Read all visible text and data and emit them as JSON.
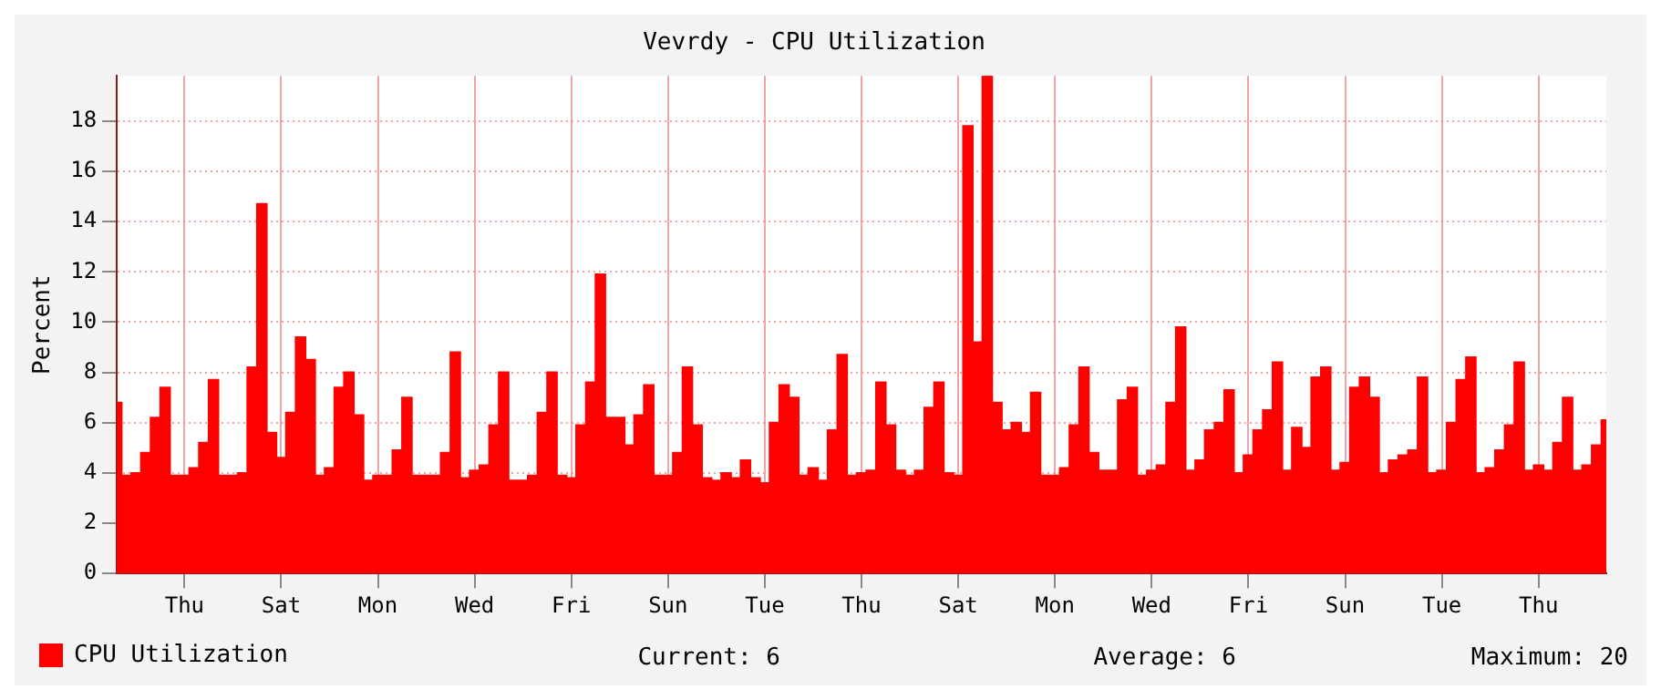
{
  "chart_data": {
    "type": "area",
    "title": "Vevrdy - CPU Utilization",
    "ylabel": "Percent",
    "categories": [
      null,
      null,
      null,
      null,
      null,
      null,
      null,
      "Thu",
      null,
      null,
      null,
      null,
      null,
      null,
      null,
      null,
      null,
      "Sat",
      null,
      null,
      null,
      null,
      null,
      null,
      null,
      null,
      null,
      "Mon",
      null,
      null,
      null,
      null,
      null,
      null,
      null,
      null,
      null,
      "Wed",
      null,
      null,
      null,
      null,
      null,
      null,
      null,
      null,
      null,
      "Fri",
      null,
      null,
      null,
      null,
      null,
      null,
      null,
      null,
      null,
      "Sun",
      null,
      null,
      null,
      null,
      null,
      null,
      null,
      null,
      null,
      "Tue",
      null,
      null,
      null,
      null,
      null,
      null,
      null,
      null,
      null,
      "Thu",
      null,
      null,
      null,
      null,
      null,
      null,
      null,
      null,
      null,
      "Sat",
      null,
      null,
      null,
      null,
      null,
      null,
      null,
      null,
      null,
      "Mon",
      null,
      null,
      null,
      null,
      null,
      null,
      null,
      null,
      null,
      "Wed",
      null,
      null,
      null,
      null,
      null,
      null,
      null,
      null,
      null,
      "Fri",
      null,
      null,
      null,
      null,
      null,
      null,
      null,
      null,
      null,
      "Sun",
      null,
      null,
      null,
      null,
      null,
      null,
      null,
      null,
      null,
      "Tue",
      null,
      null,
      null,
      null,
      null,
      null,
      null,
      null,
      null,
      "Thu",
      null,
      null,
      null,
      null,
      null,
      null,
      null
    ],
    "series": [
      {
        "name": "CPU Utilization",
        "color": "#ff0000",
        "values": [
          6.8,
          3.9,
          4.0,
          4.8,
          6.2,
          7.4,
          3.9,
          3.9,
          4.2,
          5.2,
          7.7,
          3.9,
          3.9,
          4.0,
          8.2,
          14.7,
          5.6,
          4.6,
          6.4,
          9.4,
          8.5,
          3.9,
          4.2,
          7.4,
          8.0,
          6.3,
          3.7,
          3.9,
          3.9,
          4.9,
          7.0,
          3.9,
          3.9,
          3.9,
          4.8,
          8.8,
          3.8,
          4.1,
          4.3,
          5.9,
          8.0,
          3.7,
          3.7,
          3.9,
          6.4,
          8.0,
          3.9,
          3.8,
          5.9,
          7.6,
          11.9,
          6.2,
          6.2,
          5.1,
          6.3,
          7.5,
          3.9,
          3.9,
          4.8,
          8.2,
          5.9,
          3.8,
          3.7,
          4.0,
          3.8,
          4.5,
          3.8,
          3.6,
          6.0,
          7.5,
          7.0,
          3.9,
          4.2,
          3.7,
          5.7,
          8.7,
          3.9,
          4.0,
          4.1,
          7.6,
          5.9,
          4.1,
          3.9,
          4.1,
          6.6,
          7.6,
          4.0,
          3.9,
          17.8,
          9.2,
          19.8,
          6.8,
          5.7,
          6.0,
          5.6,
          7.2,
          3.9,
          3.9,
          4.2,
          5.9,
          8.2,
          4.8,
          4.1,
          4.1,
          6.9,
          7.4,
          3.9,
          4.1,
          4.3,
          6.8,
          9.8,
          4.1,
          4.5,
          5.7,
          6.0,
          7.3,
          4.0,
          4.7,
          5.7,
          6.5,
          8.4,
          4.1,
          5.8,
          5.0,
          7.8,
          8.2,
          4.1,
          4.4,
          7.4,
          7.8,
          7.0,
          4.0,
          4.5,
          4.7,
          4.9,
          7.8,
          4.0,
          4.1,
          6.0,
          7.7,
          8.6,
          4.0,
          4.2,
          4.9,
          5.9,
          8.4,
          4.1,
          4.3,
          4.1,
          5.2,
          7.0,
          4.1,
          4.3,
          5.1,
          6.1
        ]
      }
    ],
    "ylim": [
      0,
      19.8
    ],
    "yticks": [
      0,
      2,
      4,
      6,
      8,
      10,
      12,
      14,
      16,
      18
    ],
    "grid": true,
    "legend": "bottom left",
    "annotations": [
      "Current: 6",
      "Average: 6",
      "Maximum: 20"
    ]
  }
}
